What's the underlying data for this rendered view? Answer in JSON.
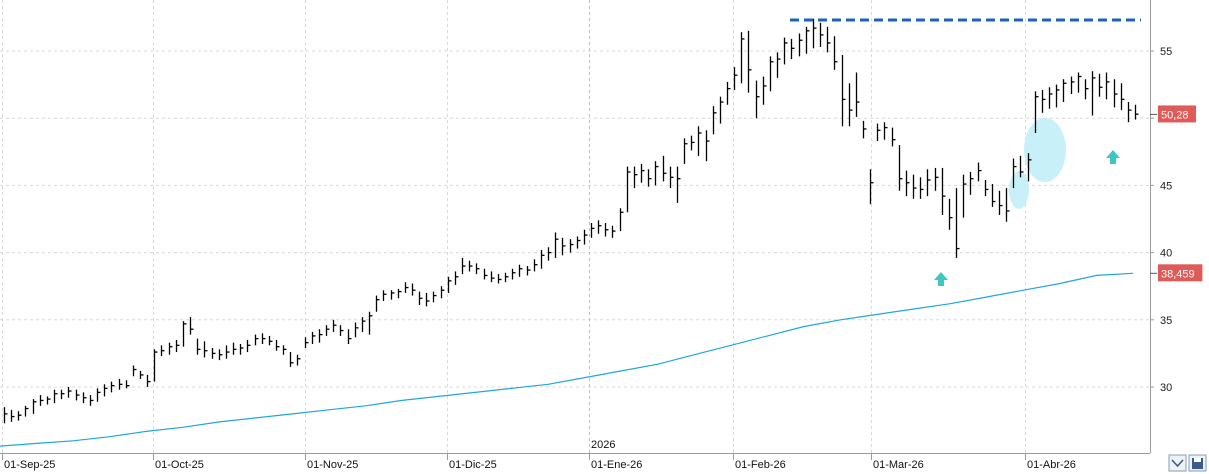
{
  "chart_data": {
    "type": "ohlc",
    "year_label": "2026",
    "x_ticks": [
      "01-Sep-25",
      "01-Oct-25",
      "01-Nov-25",
      "01-Dic-25",
      "01-Ene-26",
      "01-Feb-26",
      "01-Mar-26",
      "01-Abr-26"
    ],
    "y_ticks": [
      30,
      35,
      40,
      45,
      50,
      55
    ],
    "ylim": [
      25.5,
      57.5
    ],
    "grid": true,
    "last_price_label": "50,28",
    "moving_average_label": "38,459",
    "resistance_level": 57.2,
    "colors": {
      "bars": "#000000",
      "ma": "#1fa8d8",
      "tag": "#e05a57",
      "resistance": "#1f5fbf",
      "arrow": "#3cc8c0",
      "ellipse": "#c8f0f8"
    },
    "ohlc_bars": [
      {
        "h": 28.5,
        "l": 27.3,
        "c": 28.0
      },
      {
        "h": 28.3,
        "l": 27.4,
        "c": 27.8
      },
      {
        "h": 28.2,
        "l": 27.5,
        "c": 27.9
      },
      {
        "h": 28.6,
        "l": 27.8,
        "c": 28.4
      },
      {
        "h": 29.1,
        "l": 28.0,
        "c": 28.9
      },
      {
        "h": 29.4,
        "l": 28.6,
        "c": 29.0
      },
      {
        "h": 29.3,
        "l": 28.7,
        "c": 29.1
      },
      {
        "h": 29.8,
        "l": 28.8,
        "c": 29.5
      },
      {
        "h": 29.8,
        "l": 29.1,
        "c": 29.5
      },
      {
        "h": 30.0,
        "l": 29.2,
        "c": 29.7
      },
      {
        "h": 29.8,
        "l": 29.0,
        "c": 29.4
      },
      {
        "h": 29.6,
        "l": 28.8,
        "c": 29.2
      },
      {
        "h": 29.4,
        "l": 28.6,
        "c": 29.0
      },
      {
        "h": 29.9,
        "l": 28.9,
        "c": 29.6
      },
      {
        "h": 30.2,
        "l": 29.3,
        "c": 29.9
      },
      {
        "h": 30.4,
        "l": 29.6,
        "c": 30.1
      },
      {
        "h": 30.6,
        "l": 29.8,
        "c": 30.2
      },
      {
        "h": 30.5,
        "l": 29.9,
        "c": 30.1
      },
      {
        "h": 31.6,
        "l": 30.8,
        "c": 31.3
      },
      {
        "h": 31.2,
        "l": 30.6,
        "c": 30.9
      },
      {
        "h": 30.9,
        "l": 30.0,
        "c": 30.4
      },
      {
        "h": 32.8,
        "l": 30.4,
        "c": 32.6
      },
      {
        "h": 33.1,
        "l": 32.3,
        "c": 32.7
      },
      {
        "h": 33.3,
        "l": 32.4,
        "c": 33.0
      },
      {
        "h": 33.5,
        "l": 32.6,
        "c": 33.1
      },
      {
        "h": 34.9,
        "l": 33.0,
        "c": 34.7
      },
      {
        "h": 35.2,
        "l": 33.9,
        "c": 34.3
      },
      {
        "h": 33.6,
        "l": 32.4,
        "c": 32.8
      },
      {
        "h": 33.4,
        "l": 32.2,
        "c": 32.7
      },
      {
        "h": 32.9,
        "l": 32.1,
        "c": 32.5
      },
      {
        "h": 32.8,
        "l": 32.0,
        "c": 32.4
      },
      {
        "h": 33.1,
        "l": 32.1,
        "c": 32.6
      },
      {
        "h": 33.3,
        "l": 32.4,
        "c": 32.8
      },
      {
        "h": 33.2,
        "l": 32.4,
        "c": 32.9
      },
      {
        "h": 33.5,
        "l": 32.6,
        "c": 33.1
      },
      {
        "h": 33.9,
        "l": 33.1,
        "c": 33.6
      },
      {
        "h": 34.0,
        "l": 33.2,
        "c": 33.6
      },
      {
        "h": 33.8,
        "l": 33.1,
        "c": 33.4
      },
      {
        "h": 33.5,
        "l": 32.7,
        "c": 33.0
      },
      {
        "h": 33.1,
        "l": 32.4,
        "c": 32.8
      },
      {
        "h": 32.6,
        "l": 31.5,
        "c": 31.8
      },
      {
        "h": 32.4,
        "l": 31.6,
        "c": 32.1
      },
      {
        "h": 33.7,
        "l": 32.9,
        "c": 33.3
      },
      {
        "h": 34.1,
        "l": 33.2,
        "c": 33.8
      },
      {
        "h": 34.3,
        "l": 33.3,
        "c": 33.9
      },
      {
        "h": 34.6,
        "l": 33.8,
        "c": 34.3
      },
      {
        "h": 35.0,
        "l": 34.1,
        "c": 34.6
      },
      {
        "h": 34.6,
        "l": 33.8,
        "c": 34.2
      },
      {
        "h": 34.3,
        "l": 33.2,
        "c": 33.6
      },
      {
        "h": 34.8,
        "l": 33.7,
        "c": 34.4
      },
      {
        "h": 35.2,
        "l": 34.1,
        "c": 34.9
      },
      {
        "h": 35.6,
        "l": 33.9,
        "c": 35.3
      },
      {
        "h": 36.8,
        "l": 35.6,
        "c": 36.5
      },
      {
        "h": 37.2,
        "l": 36.4,
        "c": 36.9
      },
      {
        "h": 37.2,
        "l": 36.5,
        "c": 37.0
      },
      {
        "h": 37.3,
        "l": 36.6,
        "c": 37.1
      },
      {
        "h": 37.8,
        "l": 37.0,
        "c": 37.4
      },
      {
        "h": 37.7,
        "l": 36.8,
        "c": 37.2
      },
      {
        "h": 37.1,
        "l": 36.1,
        "c": 36.6
      },
      {
        "h": 37.0,
        "l": 36.0,
        "c": 36.4
      },
      {
        "h": 37.1,
        "l": 36.3,
        "c": 36.8
      },
      {
        "h": 37.5,
        "l": 36.6,
        "c": 37.2
      },
      {
        "h": 38.2,
        "l": 37.0,
        "c": 37.9
      },
      {
        "h": 38.6,
        "l": 37.6,
        "c": 38.2
      },
      {
        "h": 39.6,
        "l": 38.4,
        "c": 39.0
      },
      {
        "h": 39.4,
        "l": 38.6,
        "c": 39.0
      },
      {
        "h": 39.2,
        "l": 38.4,
        "c": 38.8
      },
      {
        "h": 38.8,
        "l": 38.0,
        "c": 38.3
      },
      {
        "h": 38.6,
        "l": 37.8,
        "c": 38.1
      },
      {
        "h": 38.4,
        "l": 37.7,
        "c": 38.0
      },
      {
        "h": 38.5,
        "l": 37.8,
        "c": 38.2
      },
      {
        "h": 38.8,
        "l": 38.0,
        "c": 38.5
      },
      {
        "h": 39.1,
        "l": 38.2,
        "c": 38.8
      },
      {
        "h": 39.0,
        "l": 38.3,
        "c": 38.7
      },
      {
        "h": 39.5,
        "l": 38.6,
        "c": 39.1
      },
      {
        "h": 40.2,
        "l": 38.8,
        "c": 39.8
      },
      {
        "h": 40.4,
        "l": 39.4,
        "c": 40.0
      },
      {
        "h": 41.5,
        "l": 39.6,
        "c": 41.0
      },
      {
        "h": 41.1,
        "l": 39.8,
        "c": 40.5
      },
      {
        "h": 41.0,
        "l": 40.0,
        "c": 40.6
      },
      {
        "h": 41.2,
        "l": 40.3,
        "c": 40.9
      },
      {
        "h": 41.7,
        "l": 40.6,
        "c": 41.3
      },
      {
        "h": 42.2,
        "l": 41.1,
        "c": 41.8
      },
      {
        "h": 42.4,
        "l": 41.4,
        "c": 42.0
      },
      {
        "h": 42.2,
        "l": 41.2,
        "c": 41.7
      },
      {
        "h": 42.0,
        "l": 41.1,
        "c": 41.6
      },
      {
        "h": 43.3,
        "l": 41.6,
        "c": 43.0
      },
      {
        "h": 46.4,
        "l": 43.0,
        "c": 46.0
      },
      {
        "h": 46.4,
        "l": 44.8,
        "c": 45.8
      },
      {
        "h": 46.6,
        "l": 45.2,
        "c": 46.1
      },
      {
        "h": 46.2,
        "l": 44.9,
        "c": 45.5
      },
      {
        "h": 46.8,
        "l": 45.0,
        "c": 46.4
      },
      {
        "h": 47.2,
        "l": 45.3,
        "c": 45.9
      },
      {
        "h": 46.4,
        "l": 44.8,
        "c": 45.6
      },
      {
        "h": 46.4,
        "l": 43.7,
        "c": 45.5
      },
      {
        "h": 48.5,
        "l": 46.6,
        "c": 48.1
      },
      {
        "h": 48.7,
        "l": 47.6,
        "c": 48.2
      },
      {
        "h": 49.4,
        "l": 47.2,
        "c": 48.9
      },
      {
        "h": 49.1,
        "l": 46.8,
        "c": 48.3
      },
      {
        "h": 50.9,
        "l": 48.8,
        "c": 50.4
      },
      {
        "h": 51.6,
        "l": 49.6,
        "c": 51.2
      },
      {
        "h": 52.7,
        "l": 51.0,
        "c": 52.2
      },
      {
        "h": 53.8,
        "l": 52.1,
        "c": 53.2
      },
      {
        "h": 56.4,
        "l": 52.6,
        "c": 55.9
      },
      {
        "h": 56.5,
        "l": 51.9,
        "c": 53.6
      },
      {
        "h": 52.8,
        "l": 50.0,
        "c": 51.6
      },
      {
        "h": 53.1,
        "l": 51.0,
        "c": 52.4
      },
      {
        "h": 54.6,
        "l": 52.0,
        "c": 54.2
      },
      {
        "h": 54.9,
        "l": 53.0,
        "c": 54.4
      },
      {
        "h": 56.0,
        "l": 54.0,
        "c": 55.6
      },
      {
        "h": 55.9,
        "l": 54.4,
        "c": 55.2
      },
      {
        "h": 56.3,
        "l": 54.6,
        "c": 55.8
      },
      {
        "h": 56.8,
        "l": 54.8,
        "c": 56.5
      },
      {
        "h": 57.4,
        "l": 55.2,
        "c": 56.7
      },
      {
        "h": 57.1,
        "l": 55.3,
        "c": 56.2
      },
      {
        "h": 56.8,
        "l": 54.9,
        "c": 55.6
      },
      {
        "h": 56.1,
        "l": 53.6,
        "c": 54.2
      },
      {
        "h": 54.7,
        "l": 49.4,
        "c": 51.4
      },
      {
        "h": 52.6,
        "l": 49.4,
        "c": 50.6
      },
      {
        "h": 53.4,
        "l": 50.1,
        "c": 51.2
      },
      {
        "h": 49.8,
        "l": 48.5,
        "c": 49.2
      },
      {
        "h": 46.2,
        "l": 43.6,
        "c": 45.2
      },
      {
        "h": 49.6,
        "l": 48.3,
        "c": 49.1
      },
      {
        "h": 49.7,
        "l": 48.4,
        "c": 49.3
      },
      {
        "h": 49.3,
        "l": 47.9,
        "c": 48.4
      },
      {
        "h": 48.0,
        "l": 44.6,
        "c": 45.5
      },
      {
        "h": 46.1,
        "l": 44.2,
        "c": 45.2
      },
      {
        "h": 45.8,
        "l": 44.0,
        "c": 44.8
      },
      {
        "h": 45.6,
        "l": 44.0,
        "c": 44.7
      },
      {
        "h": 46.2,
        "l": 44.2,
        "c": 45.4
      },
      {
        "h": 46.3,
        "l": 44.6,
        "c": 45.6
      },
      {
        "h": 46.3,
        "l": 42.8,
        "c": 44.2
      },
      {
        "h": 44.0,
        "l": 41.7,
        "c": 42.6
      },
      {
        "h": 44.8,
        "l": 39.6,
        "c": 40.3
      },
      {
        "h": 45.8,
        "l": 42.6,
        "c": 45.1
      },
      {
        "h": 46.0,
        "l": 44.3,
        "c": 45.5
      },
      {
        "h": 46.7,
        "l": 45.3,
        "c": 46.1
      },
      {
        "h": 45.4,
        "l": 44.2,
        "c": 44.7
      },
      {
        "h": 45.1,
        "l": 43.4,
        "c": 43.8
      },
      {
        "h": 44.6,
        "l": 42.8,
        "c": 43.5
      },
      {
        "h": 44.8,
        "l": 42.3,
        "c": 43.1
      },
      {
        "h": 47.0,
        "l": 44.8,
        "c": 46.4
      },
      {
        "h": 47.2,
        "l": 45.6,
        "c": 46.0
      },
      {
        "h": 47.4,
        "l": 45.3,
        "c": 46.9
      },
      {
        "h": 52.0,
        "l": 48.9,
        "c": 51.6
      },
      {
        "h": 52.1,
        "l": 50.4,
        "c": 51.4
      },
      {
        "h": 52.3,
        "l": 50.7,
        "c": 51.8
      },
      {
        "h": 52.5,
        "l": 50.8,
        "c": 52.1
      },
      {
        "h": 52.9,
        "l": 51.2,
        "c": 52.6
      },
      {
        "h": 53.1,
        "l": 51.8,
        "c": 52.7
      },
      {
        "h": 53.4,
        "l": 51.9,
        "c": 53.1
      },
      {
        "h": 52.9,
        "l": 51.4,
        "c": 52.2
      },
      {
        "h": 53.5,
        "l": 50.2,
        "c": 53.0
      },
      {
        "h": 53.3,
        "l": 51.6,
        "c": 52.3
      },
      {
        "h": 53.4,
        "l": 51.4,
        "c": 52.7
      },
      {
        "h": 52.9,
        "l": 50.8,
        "c": 51.8
      },
      {
        "h": 52.6,
        "l": 50.6,
        "c": 51.4
      },
      {
        "h": 51.2,
        "l": 49.7,
        "c": 50.6
      },
      {
        "h": 51.0,
        "l": 49.9,
        "c": 50.3
      }
    ],
    "moving_average": [
      25.6,
      25.8,
      26.0,
      26.3,
      26.7,
      27.0,
      27.4,
      27.7,
      28.0,
      28.3,
      28.6,
      29.0,
      29.3,
      29.6,
      29.9,
      30.2,
      30.7,
      31.2,
      31.7,
      32.4,
      33.1,
      33.8,
      34.5,
      35.0,
      35.4,
      35.8,
      36.2,
      36.7,
      37.2,
      37.7,
      38.3,
      38.459
    ]
  }
}
